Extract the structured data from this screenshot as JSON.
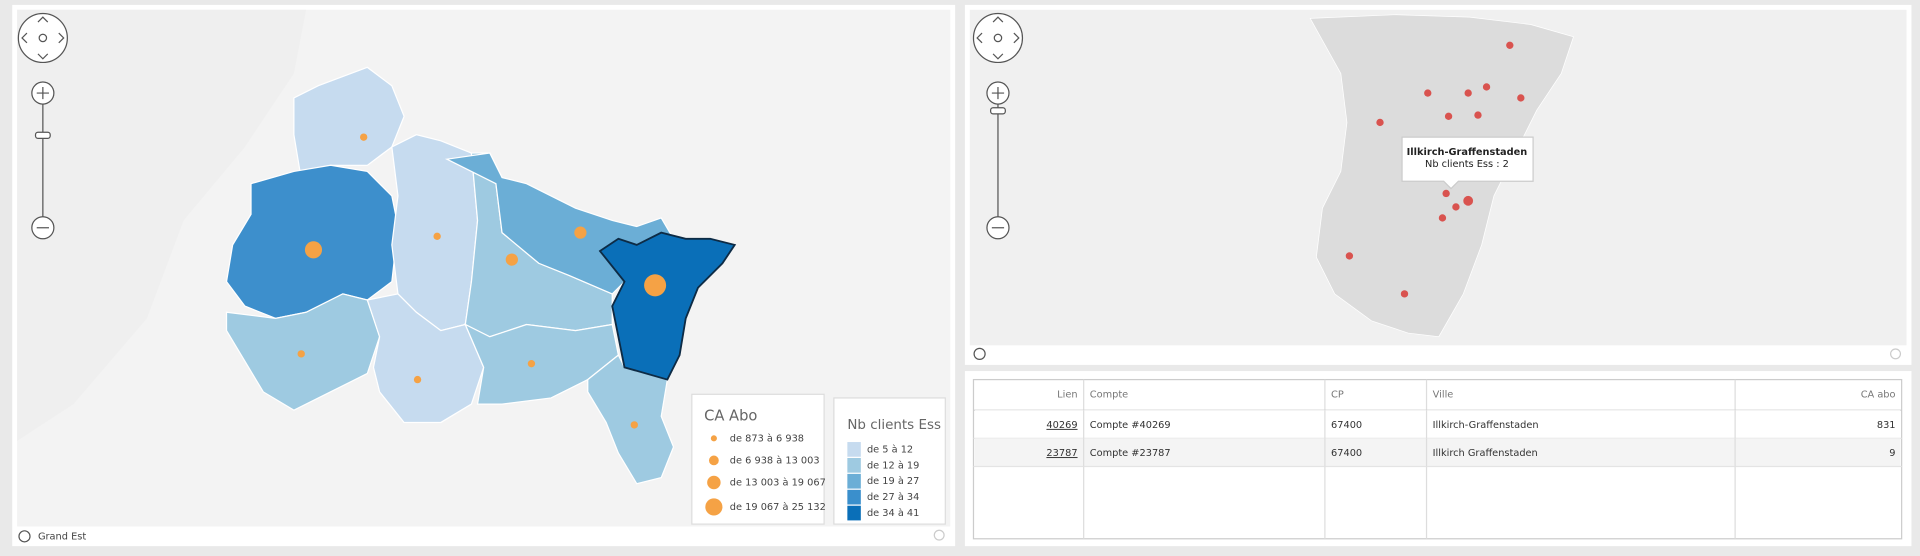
{
  "left_map": {
    "location_label": "Grand Est",
    "legend_size": {
      "title": "CA Abo",
      "items": [
        "de 873 à 6 938",
        "de 6 938 à 13 003",
        "de 13 003 à 19 067",
        "de 19 067 à 25 132"
      ]
    },
    "legend_color": {
      "title": "Nb clients Ess",
      "items": [
        "de 5 à 12",
        "de 12 à 19",
        "de 19 à 27",
        "de 27 à 34",
        "de 34 à 41"
      ]
    }
  },
  "right_map": {
    "tooltip": {
      "title": "Illkirch-Graffenstaden",
      "text": "Nb clients Ess : 2"
    }
  },
  "table": {
    "columns": [
      "Lien",
      "Compte",
      "CP",
      "Ville",
      "CA abo"
    ],
    "rows": [
      [
        "40269",
        "Compte #40269",
        "67400",
        "Illkirch-Graffenstaden",
        "831"
      ],
      [
        "23787",
        "Compte #23787",
        "67400",
        "Illkirch Graffenstaden",
        "9"
      ]
    ]
  }
}
